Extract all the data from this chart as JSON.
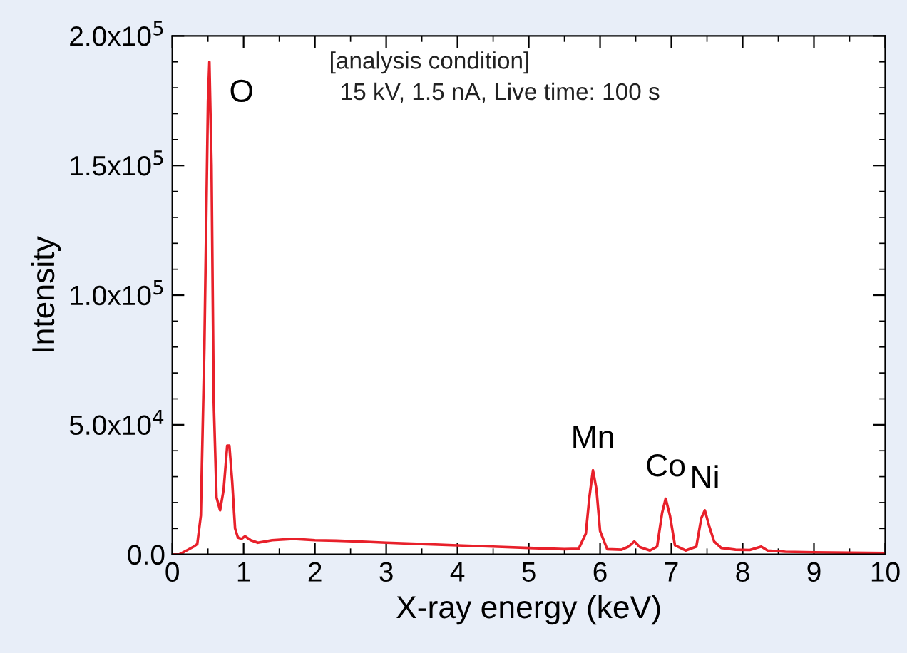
{
  "chart_data": {
    "type": "line",
    "xlabel": "X-ray energy (keV)",
    "ylabel": "Intensity",
    "x": [
      0,
      0.1,
      0.2,
      0.3,
      0.35,
      0.4,
      0.45,
      0.5,
      0.52,
      0.55,
      0.58,
      0.62,
      0.67,
      0.72,
      0.77,
      0.8,
      0.84,
      0.88,
      0.92,
      0.97,
      1.02,
      1.1,
      1.2,
      1.4,
      1.7,
      2.0,
      2.3,
      2.6,
      3.0,
      3.5,
      4.0,
      4.5,
      5.0,
      5.5,
      5.7,
      5.8,
      5.85,
      5.9,
      5.95,
      6.0,
      6.1,
      6.3,
      6.4,
      6.48,
      6.56,
      6.7,
      6.8,
      6.87,
      6.92,
      6.98,
      7.05,
      7.2,
      7.35,
      7.42,
      7.47,
      7.53,
      7.6,
      7.7,
      7.9,
      8.1,
      8.2,
      8.26,
      8.35,
      8.6,
      9.0,
      10
    ],
    "series": [
      {
        "color": "#e8202a",
        "values": [
          0,
          0,
          1500,
          3000,
          4000,
          15000,
          80000,
          175000,
          190000,
          150000,
          60000,
          22000,
          17000,
          25000,
          42000,
          42000,
          28000,
          10000,
          6500,
          6000,
          7000,
          5500,
          4500,
          5500,
          6000,
          5500,
          5300,
          5000,
          4500,
          4000,
          3500,
          3000,
          2500,
          2000,
          2200,
          8000,
          22000,
          32500,
          25000,
          9000,
          2000,
          1800,
          3000,
          5000,
          2800,
          1500,
          3000,
          16000,
          21500,
          15000,
          3500,
          1500,
          3000,
          14000,
          17000,
          11000,
          5000,
          2500,
          1800,
          1700,
          2500,
          3000,
          1500,
          1000,
          800,
          500
        ]
      }
    ],
    "xlim": [
      0,
      10
    ],
    "xticks": [
      0,
      1,
      2,
      3,
      4,
      5,
      6,
      7,
      8,
      9,
      10
    ],
    "ylim": [
      0,
      200000
    ],
    "yticks": [
      {
        "value": 0,
        "label": "0.0"
      },
      {
        "value": 50000,
        "label": "5.0x10$^{4}$"
      },
      {
        "value": 100000,
        "label": "1.0x10$^{5}$"
      },
      {
        "value": 150000,
        "label": "1.5x10$^{5}$"
      },
      {
        "value": 200000,
        "label": "2.0x10$^{5}$"
      }
    ],
    "grid": false,
    "marker": "none",
    "line_style": "solid",
    "annotations": [
      {
        "text": "O",
        "x": 0.52,
        "y": 190000
      },
      {
        "text": "Mn",
        "x": 5.9,
        "y": 32500
      },
      {
        "text": "Co",
        "x": 6.92,
        "y": 21500
      },
      {
        "text": "Ni",
        "x": 7.47,
        "y": 17000
      },
      "[analysis condition]",
      "15 kV, 1.5 nA, Live time: 100 s"
    ]
  }
}
